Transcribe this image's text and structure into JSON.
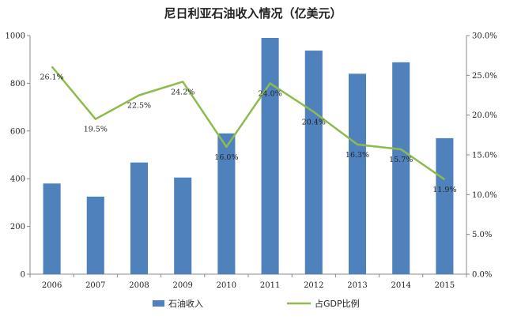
{
  "chart_data": {
    "type": "bar",
    "title": "尼日利亚石油收入情况（亿美元）",
    "categories": [
      "2006",
      "2007",
      "2008",
      "2009",
      "2010",
      "2011",
      "2012",
      "2013",
      "2014",
      "2015"
    ],
    "series": [
      {
        "name": "石油收入",
        "type": "bar",
        "axis": "left",
        "color": "#4f81bd",
        "values": [
          380,
          325,
          468,
          405,
          590,
          990,
          937,
          840,
          888,
          570
        ]
      },
      {
        "name": "占GDP比例",
        "type": "line",
        "axis": "right",
        "color": "#8dbb4c",
        "values": [
          26.1,
          19.5,
          22.5,
          24.2,
          16.0,
          24.0,
          20.4,
          16.3,
          15.7,
          11.9
        ],
        "labels": [
          "26.1%",
          "19.5%",
          "22.5%",
          "24.2%",
          "16.0%",
          "24.0%",
          "20.4%",
          "16.3%",
          "15.7%",
          "11.9%"
        ]
      }
    ],
    "y_left": {
      "min": 0,
      "max": 1000,
      "ticks": [
        "0",
        "200",
        "400",
        "600",
        "800",
        "1000"
      ]
    },
    "y_right": {
      "min": 0,
      "max": 30,
      "ticks": [
        "0.0%",
        "5.0%",
        "10.0%",
        "15.0%",
        "20.0%",
        "25.0%",
        "30.0%"
      ]
    },
    "grid": false,
    "legend_position": "bottom"
  }
}
